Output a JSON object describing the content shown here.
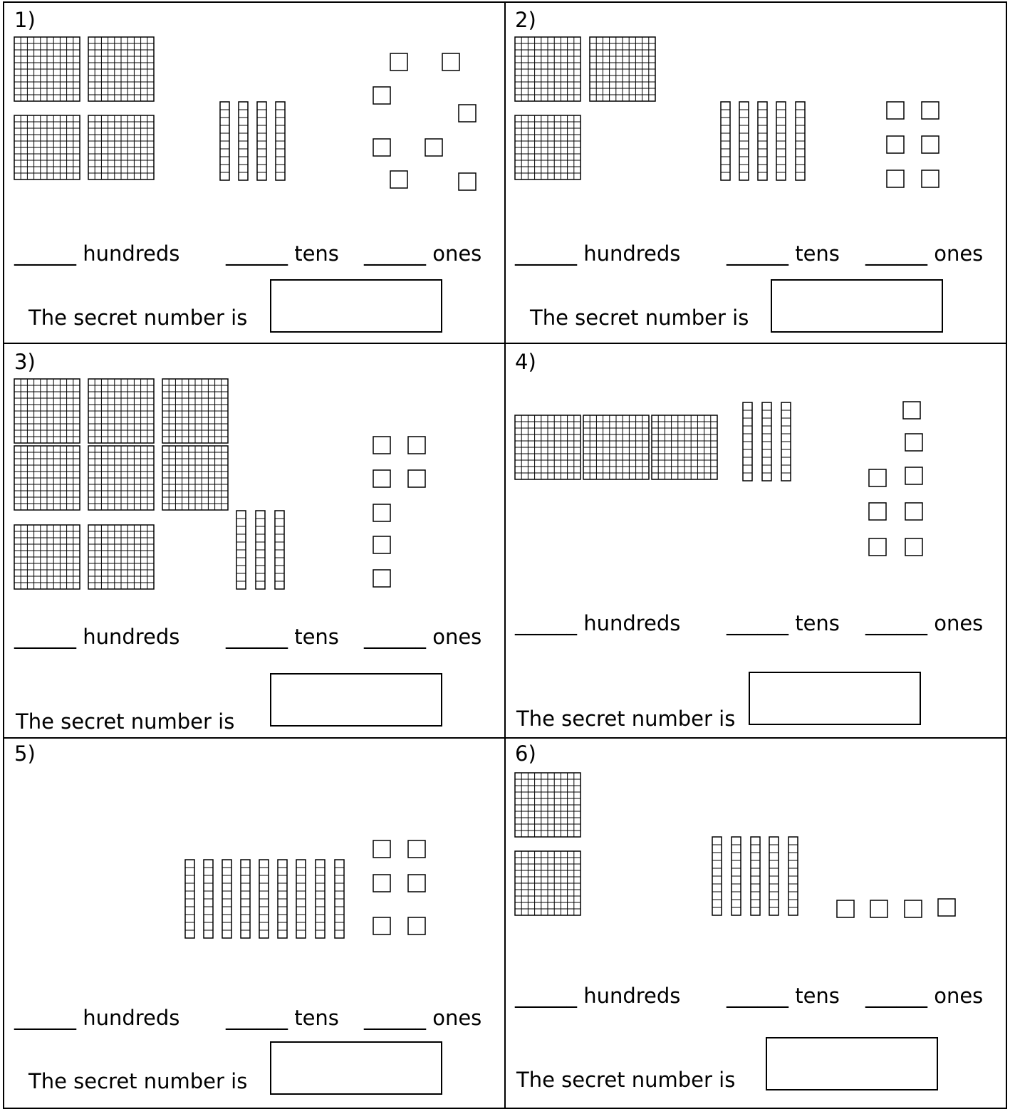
{
  "sections": [
    {
      "number": "1)",
      "hundreds": "______ hundreds",
      "tens": "______ tens",
      "ones": "______ ones",
      "prompt": "The secret number is"
    },
    {
      "number": "2)",
      "hundreds": "______ hundreds",
      "tens": "______ tens",
      "ones": "______ ones",
      "prompt": "The secret number is"
    },
    {
      "number": "3)",
      "hundreds": "______ hundreds",
      "tens": "______ tens",
      "ones": "______ ones",
      "prompt": "The secret number is"
    },
    {
      "number": "4)",
      "hundreds": "______ hundreds",
      "tens": "______ tens",
      "ones": "______ ones",
      "prompt": "The secret number is"
    },
    {
      "number": "5)",
      "hundreds": "______ hundreds",
      "tens": "______ tens",
      "ones": "______ ones",
      "prompt": "The secret number is"
    },
    {
      "number": "6)",
      "hundreds": "______ hundreds",
      "tens": "______ tens",
      "ones": "______ ones",
      "prompt": "The secret number is"
    }
  ]
}
